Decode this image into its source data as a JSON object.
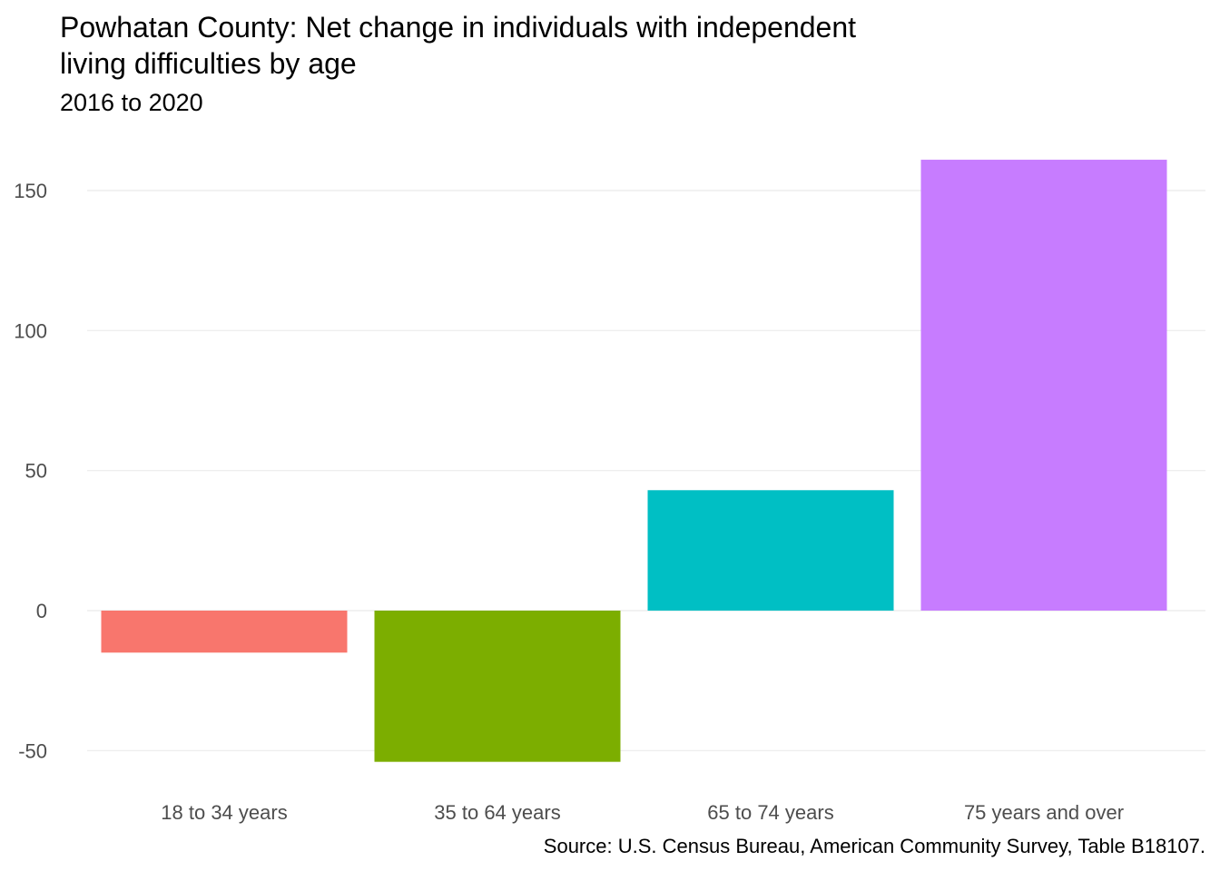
{
  "chart_data": {
    "type": "bar",
    "title": "Powhatan County: Net change in individuals with independent living difficulties by age",
    "subtitle": "2016 to 2020",
    "caption": "Source: U.S. Census Bureau, American Community Survey, Table B18107.",
    "xlabel": "",
    "ylabel": "",
    "categories": [
      "18 to 34 years",
      "35 to 64 years",
      "65 to 74 years",
      "75 years and over"
    ],
    "values": [
      -15,
      -54,
      43,
      161
    ],
    "colors": [
      "#F8766D",
      "#7CAE00",
      "#00BFC4",
      "#C77CFF"
    ],
    "ylim": [
      -60,
      170
    ],
    "yticks": [
      -50,
      0,
      50,
      100,
      150
    ],
    "ytick_labels": [
      "-50",
      "0",
      "50",
      "100",
      "150"
    ],
    "grid": true,
    "legend": "none"
  }
}
